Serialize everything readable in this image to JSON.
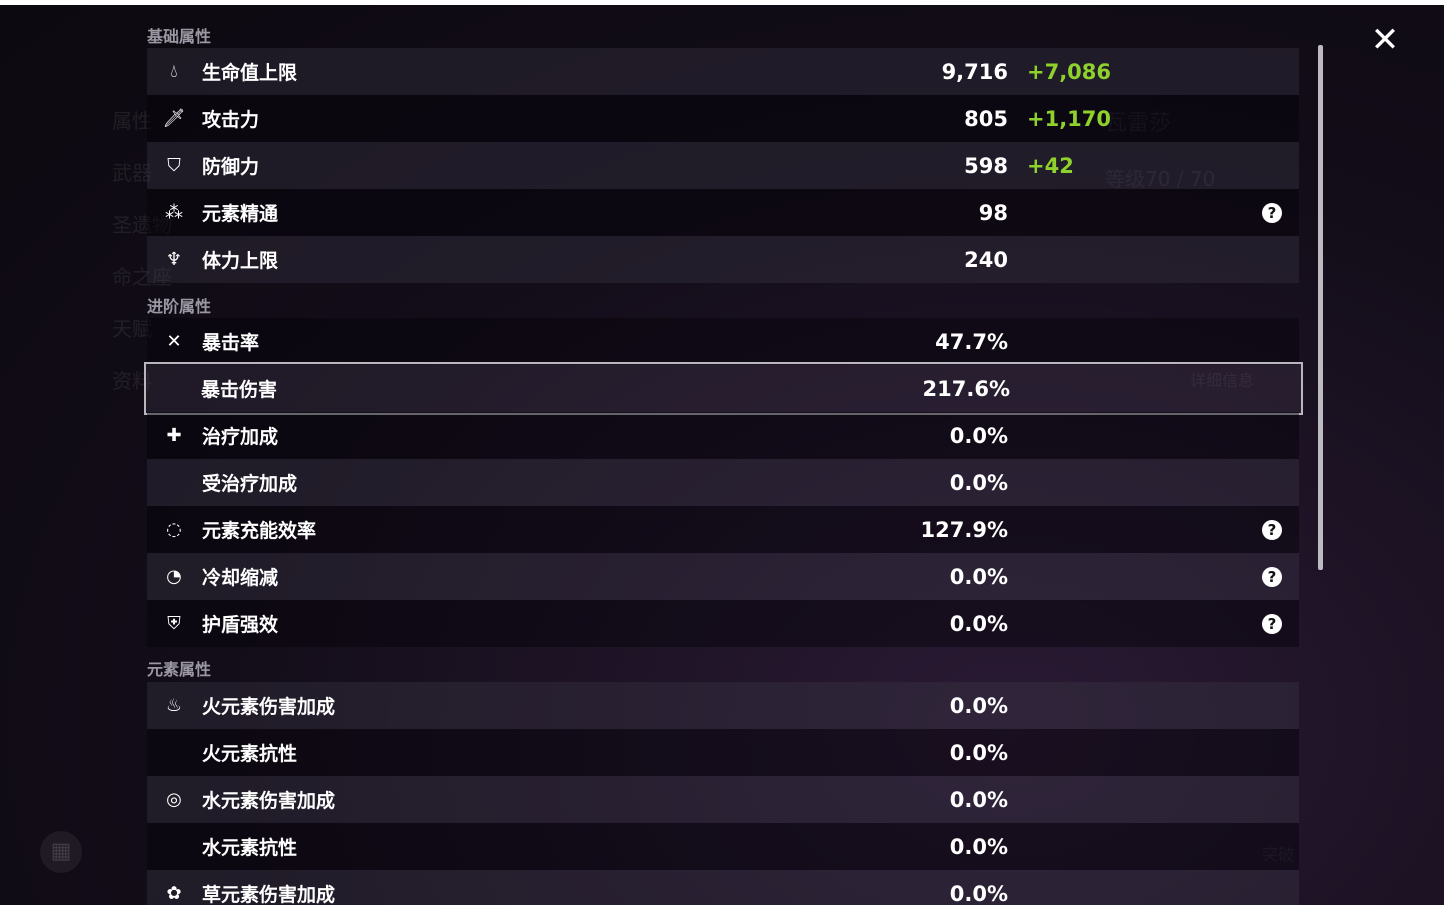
{
  "background": {
    "character_name": "瓦雷莎",
    "level": "等级70 / 70",
    "detail_button": "详细信息",
    "breakthrough_button": "突破",
    "side_tabs": [
      "属性",
      "武器",
      "圣遗物",
      "命之座",
      "天赋",
      "资料"
    ]
  },
  "sections": {
    "basic": "基础属性",
    "advanced": "进阶属性",
    "elemental": "元素属性"
  },
  "basic_stats": [
    {
      "icon": "hp-drop-icon",
      "label": "生命值上限",
      "value": "9,716",
      "bonus": "+7,086"
    },
    {
      "icon": "sword-icon",
      "label": "攻击力",
      "value": "805",
      "bonus": "+1,170"
    },
    {
      "icon": "shield-icon",
      "label": "防御力",
      "value": "598",
      "bonus": "+42"
    },
    {
      "icon": "elemental-mastery-icon",
      "label": "元素精通",
      "value": "98",
      "help": "?"
    },
    {
      "icon": "stamina-icon",
      "label": "体力上限",
      "value": "240"
    }
  ],
  "advanced_stats": [
    {
      "icon": "crit-rate-icon",
      "label": "暴击率",
      "value": "47.7%"
    },
    {
      "icon": "crit-dmg-icon",
      "label": "暴击伤害",
      "value": "217.6%",
      "selected": true
    },
    {
      "icon": "healing-bonus-icon",
      "label": "治疗加成",
      "value": "0.0%"
    },
    {
      "icon": "",
      "label": "受治疗加成",
      "value": "0.0%"
    },
    {
      "icon": "energy-recharge-icon",
      "label": "元素充能效率",
      "value": "127.9%",
      "help": "?"
    },
    {
      "icon": "cd-reduction-icon",
      "label": "冷却缩减",
      "value": "0.0%",
      "help": "?"
    },
    {
      "icon": "shield-strength-icon",
      "label": "护盾强效",
      "value": "0.0%",
      "help": "?"
    }
  ],
  "elemental_stats": [
    {
      "icon": "pyro-icon",
      "label": "火元素伤害加成",
      "value": "0.0%"
    },
    {
      "icon": "",
      "label": "火元素抗性",
      "value": "0.0%"
    },
    {
      "icon": "hydro-icon",
      "label": "水元素伤害加成",
      "value": "0.0%"
    },
    {
      "icon": "",
      "label": "水元素抗性",
      "value": "0.0%"
    },
    {
      "icon": "dendro-icon",
      "label": "草元素伤害加成",
      "value": "0.0%"
    }
  ],
  "close_glyph": "✕",
  "colors": {
    "bonus": "#8fd12c",
    "text": "#ffffff",
    "section": "#9b98a3"
  }
}
